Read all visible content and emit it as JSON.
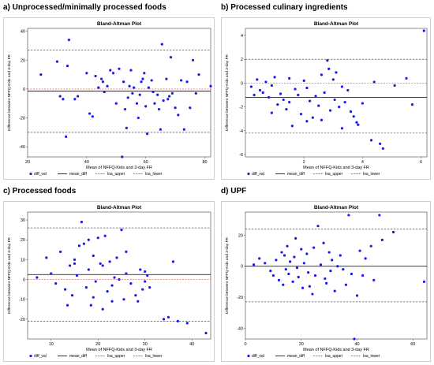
{
  "panels": [
    {
      "label": "a) Unprocessed/minimally processed foods"
    },
    {
      "label": "b) Processed culinary ingredients"
    },
    {
      "label": "c) Processed foods"
    },
    {
      "label": "d) UPF"
    }
  ],
  "legend": {
    "diff_val": "diff_val",
    "mean_diff": "mean_diff",
    "loa_upper": "loa_upper",
    "loa_lower": "loa_lower"
  },
  "colors": {
    "points": "#1a1aee",
    "mean_line": "#000000",
    "loa_line": "#555555",
    "zero_line": "#d9534f",
    "frame": "#cfcfcf"
  },
  "chart_data": [
    {
      "type": "scatter",
      "title": "Bland-Altman Plot",
      "xlabel": "Mean of NFFQ-Kids and 3-day FR",
      "ylabel": "Difference between NFFQ-Kids and 3-day FR",
      "xlim": [
        20,
        82
      ],
      "ylim": [
        -47,
        42
      ],
      "xticks": [
        20,
        40,
        60,
        80
      ],
      "yticks": [
        -40,
        -20,
        0,
        20,
        40
      ],
      "mean_diff": -1.5,
      "loa_upper": 27,
      "loa_lower": -30,
      "zero_line": 0,
      "points": [
        [
          24.5,
          10
        ],
        [
          30,
          19
        ],
        [
          31,
          -5
        ],
        [
          32,
          -7
        ],
        [
          33,
          -33
        ],
        [
          33.5,
          16
        ],
        [
          34,
          34
        ],
        [
          36,
          -7
        ],
        [
          37,
          -5
        ],
        [
          40,
          11
        ],
        [
          41,
          -17
        ],
        [
          42,
          -19
        ],
        [
          43,
          9
        ],
        [
          44,
          1
        ],
        [
          45,
          7
        ],
        [
          45.5,
          5
        ],
        [
          46,
          -2
        ],
        [
          47,
          2
        ],
        [
          48,
          13
        ],
        [
          49,
          11
        ],
        [
          50,
          -10
        ],
        [
          51,
          14
        ],
        [
          52,
          -47
        ],
        [
          52.5,
          5
        ],
        [
          53,
          -14
        ],
        [
          53.5,
          -27
        ],
        [
          54,
          -6
        ],
        [
          54.5,
          2
        ],
        [
          55,
          13
        ],
        [
          55.5,
          -3
        ],
        [
          56,
          1
        ],
        [
          57,
          -10
        ],
        [
          57.5,
          -20
        ],
        [
          58,
          -4
        ],
        [
          58.5,
          5
        ],
        [
          59,
          7
        ],
        [
          59.5,
          11
        ],
        [
          60,
          -12
        ],
        [
          60.5,
          -31
        ],
        [
          61,
          1
        ],
        [
          62,
          6
        ],
        [
          62.5,
          -2
        ],
        [
          63,
          -10
        ],
        [
          64,
          -4
        ],
        [
          64.5,
          -14
        ],
        [
          65,
          -28
        ],
        [
          65.5,
          31
        ],
        [
          66,
          -8
        ],
        [
          67,
          7
        ],
        [
          67.5,
          -7
        ],
        [
          68,
          -5
        ],
        [
          68.5,
          22
        ],
        [
          69,
          -3
        ],
        [
          70,
          -13
        ],
        [
          71,
          -18
        ],
        [
          72,
          6
        ],
        [
          73,
          -28
        ],
        [
          74,
          5
        ],
        [
          75,
          -13
        ],
        [
          76,
          20
        ],
        [
          77,
          -3
        ],
        [
          78,
          10
        ],
        [
          82,
          2
        ]
      ]
    },
    {
      "type": "scatter",
      "title": "Bland-Altman Plot",
      "xlabel": "Mean of NFFQ-Kids and 3-day FR",
      "ylabel": "Difference between NFFQ-Kids and 3-day FR",
      "xlim": [
        0,
        6.2
      ],
      "ylim": [
        -6.2,
        4.6
      ],
      "xticks": [
        2,
        4,
        6
      ],
      "yticks": [
        -6,
        -4,
        -2,
        0,
        2,
        4
      ],
      "mean_diff": -1.2,
      "loa_upper": 2.0,
      "loa_lower": -4.2,
      "zero_line": 0,
      "points": [
        [
          0.2,
          -0.3
        ],
        [
          0.4,
          0.3
        ],
        [
          0.5,
          -0.6
        ],
        [
          0.6,
          -0.8
        ],
        [
          0.7,
          0.1
        ],
        [
          0.8,
          -1.2
        ],
        [
          0.9,
          -0.2
        ],
        [
          1.0,
          0.5
        ],
        [
          1.1,
          -1.8
        ],
        [
          1.2,
          -0.9
        ],
        [
          1.3,
          -1.4
        ],
        [
          1.4,
          -2.2
        ],
        [
          1.5,
          0.4
        ],
        [
          1.6,
          -3.6
        ],
        [
          1.7,
          -0.5
        ],
        [
          1.8,
          -1.0
        ],
        [
          1.9,
          -2.6
        ],
        [
          2.0,
          0.2
        ],
        [
          2.1,
          -0.4
        ],
        [
          2.2,
          -1.5
        ],
        [
          2.3,
          -2.9
        ],
        [
          2.4,
          -1.1
        ],
        [
          2.5,
          -1.9
        ],
        [
          2.6,
          -3.1
        ],
        [
          2.7,
          -0.8
        ],
        [
          2.8,
          1.9
        ],
        [
          2.85,
          1.2
        ],
        [
          2.9,
          -2.3
        ],
        [
          3.0,
          0.3
        ],
        [
          3.05,
          -1.4
        ],
        [
          3.1,
          0.9
        ],
        [
          3.2,
          -2.0
        ],
        [
          3.3,
          -3.8
        ],
        [
          3.4,
          -1.6
        ],
        [
          3.5,
          -0.6
        ],
        [
          3.6,
          -2.4
        ],
        [
          3.7,
          -2.8
        ],
        [
          3.8,
          -3.3
        ],
        [
          3.85,
          -3.5
        ],
        [
          4.0,
          -1.7
        ],
        [
          4.3,
          -4.8
        ],
        [
          4.4,
          0.1
        ],
        [
          4.6,
          -5.1
        ],
        [
          4.7,
          -5.5
        ],
        [
          5.1,
          -0.2
        ],
        [
          5.5,
          0.4
        ],
        [
          5.7,
          -1.8
        ],
        [
          6.1,
          4.4
        ],
        [
          0.3,
          -1.0
        ],
        [
          0.9,
          -2.5
        ],
        [
          1.5,
          -1.6
        ],
        [
          2.1,
          -3.2
        ],
        [
          2.6,
          0.7
        ],
        [
          3.3,
          -0.3
        ]
      ]
    },
    {
      "type": "scatter",
      "title": "Bland-Altman Plot",
      "xlabel": "Mean of NFFQ-Kids and 3-day FR",
      "ylabel": "Difference between NFFQ-Kids and 3-day FR",
      "xlim": [
        5,
        44
      ],
      "ylim": [
        -30,
        34
      ],
      "xticks": [
        10,
        20,
        30,
        40
      ],
      "yticks": [
        -20,
        -10,
        0,
        10,
        20,
        30
      ],
      "mean_diff": 2.5,
      "loa_upper": 26,
      "loa_lower": -21,
      "zero_line": 0,
      "points": [
        [
          7,
          1
        ],
        [
          9,
          11
        ],
        [
          10,
          3
        ],
        [
          11,
          -2
        ],
        [
          12,
          14
        ],
        [
          13,
          -5
        ],
        [
          13.5,
          -13
        ],
        [
          14,
          7
        ],
        [
          14.5,
          -8
        ],
        [
          15,
          10
        ],
        [
          15.5,
          2
        ],
        [
          16,
          17
        ],
        [
          16.5,
          29
        ],
        [
          17,
          18
        ],
        [
          17.5,
          -4
        ],
        [
          18,
          5
        ],
        [
          18.5,
          -13
        ],
        [
          19,
          12
        ],
        [
          19.5,
          -1
        ],
        [
          20,
          21
        ],
        [
          20.5,
          8
        ],
        [
          21,
          -15
        ],
        [
          21.5,
          22
        ],
        [
          22,
          -6
        ],
        [
          22.5,
          9
        ],
        [
          23,
          -3
        ],
        [
          23.5,
          1
        ],
        [
          24,
          11
        ],
        [
          24.5,
          0
        ],
        [
          25,
          25
        ],
        [
          25.5,
          -10
        ],
        [
          26,
          3
        ],
        [
          27,
          -2
        ],
        [
          28,
          -8
        ],
        [
          28.5,
          -11
        ],
        [
          29,
          5
        ],
        [
          29.5,
          -5
        ],
        [
          30,
          -1
        ],
        [
          30.5,
          2
        ],
        [
          31,
          -4
        ],
        [
          34,
          -20
        ],
        [
          35,
          -19
        ],
        [
          36,
          9
        ],
        [
          37,
          -21
        ],
        [
          39,
          -22
        ],
        [
          43,
          -27
        ],
        [
          15,
          8
        ],
        [
          18,
          20
        ],
        [
          19,
          -9
        ],
        [
          21,
          7
        ],
        [
          23,
          -11
        ],
        [
          26,
          14
        ],
        [
          30,
          4
        ]
      ]
    },
    {
      "type": "scatter",
      "title": "Bland-Altman Plot",
      "xlabel": "Mean of NFFQ-Kids and 3-day FR",
      "ylabel": "Difference between NFFQ-Kids and 3-day FR",
      "xlim": [
        0,
        65
      ],
      "ylim": [
        -47,
        35
      ],
      "xticks": [
        0,
        20,
        40,
        60
      ],
      "yticks": [
        -40,
        -20,
        0,
        20
      ],
      "mean_diff": 0,
      "loa_upper": 24,
      "loa_lower": -23,
      "zero_line": 0,
      "points": [
        [
          3,
          1
        ],
        [
          5,
          5
        ],
        [
          7,
          2
        ],
        [
          9,
          -3
        ],
        [
          10,
          -6
        ],
        [
          11,
          4
        ],
        [
          12,
          -9
        ],
        [
          13,
          9
        ],
        [
          13.5,
          -12
        ],
        [
          14,
          7
        ],
        [
          14.5,
          -2
        ],
        [
          15,
          13
        ],
        [
          15.5,
          -5
        ],
        [
          16,
          3
        ],
        [
          17,
          -10
        ],
        [
          17.5,
          6
        ],
        [
          18,
          18
        ],
        [
          18.5,
          -1
        ],
        [
          19,
          -7
        ],
        [
          20,
          11
        ],
        [
          20.5,
          -14
        ],
        [
          21,
          2
        ],
        [
          22,
          8
        ],
        [
          22.5,
          -4
        ],
        [
          23,
          -13
        ],
        [
          24,
          -18
        ],
        [
          24.5,
          12
        ],
        [
          25,
          -6
        ],
        [
          26,
          26
        ],
        [
          27,
          1
        ],
        [
          28,
          15
        ],
        [
          28.5,
          -8
        ],
        [
          29,
          -11
        ],
        [
          30,
          9
        ],
        [
          30.5,
          -3
        ],
        [
          31,
          4
        ],
        [
          32,
          -16
        ],
        [
          33,
          0
        ],
        [
          34,
          7
        ],
        [
          35,
          -2
        ],
        [
          36,
          -12
        ],
        [
          37,
          33
        ],
        [
          38,
          -5
        ],
        [
          39,
          -47
        ],
        [
          40,
          -19
        ],
        [
          41,
          10
        ],
        [
          42,
          -6
        ],
        [
          43,
          5
        ],
        [
          45,
          13
        ],
        [
          46,
          -9
        ],
        [
          48,
          33
        ],
        [
          49,
          17
        ],
        [
          53,
          22
        ],
        [
          64,
          -10
        ]
      ]
    }
  ]
}
